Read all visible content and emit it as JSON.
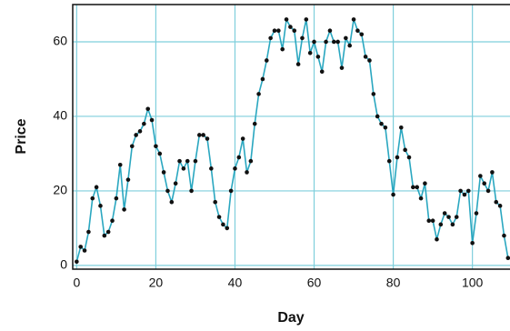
{
  "chart_data": {
    "type": "line",
    "xlabel": "Day",
    "ylabel": "Price",
    "x": [
      0,
      1,
      2,
      3,
      4,
      5,
      6,
      7,
      8,
      9,
      10,
      11,
      12,
      13,
      14,
      15,
      16,
      17,
      18,
      19,
      20,
      21,
      22,
      23,
      24,
      25,
      26,
      27,
      28,
      29,
      30,
      31,
      32,
      33,
      34,
      35,
      36,
      37,
      38,
      39,
      40,
      41,
      42,
      43,
      44,
      45,
      46,
      47,
      48,
      49,
      50,
      51,
      52,
      53,
      54,
      55,
      56,
      57,
      58,
      59,
      60,
      61,
      62,
      63,
      64,
      65,
      66,
      67,
      68,
      69,
      70,
      71,
      72,
      73,
      74,
      75,
      76,
      77,
      78,
      79,
      80,
      81,
      82,
      83,
      84,
      85,
      86,
      87,
      88,
      89,
      90,
      91,
      92,
      93,
      94,
      95,
      96,
      97,
      98,
      99,
      100,
      101,
      102,
      103,
      104,
      105,
      106,
      107,
      108,
      109
    ],
    "series": [
      {
        "name": "Price",
        "color": "#2aa7c0",
        "marker_color": "#111111",
        "values": [
          1,
          5,
          4,
          9,
          18,
          21,
          16,
          8,
          9,
          12,
          18,
          27,
          15,
          23,
          32,
          35,
          36,
          38,
          42,
          39,
          32,
          30,
          25,
          20,
          17,
          22,
          28,
          26,
          28,
          20,
          28,
          35,
          35,
          34,
          26,
          17,
          13,
          11,
          10,
          20,
          26,
          29,
          34,
          25,
          28,
          38,
          46,
          50,
          55,
          61,
          63,
          63,
          58,
          66,
          64,
          63,
          54,
          61,
          66,
          57,
          60,
          56,
          52,
          60,
          63,
          60,
          60,
          53,
          61,
          59,
          66,
          63,
          62,
          56,
          55,
          46,
          40,
          38,
          37,
          28,
          19,
          29,
          37,
          31,
          29,
          21,
          21,
          18,
          22,
          12,
          12,
          7,
          11,
          14,
          13,
          11,
          13,
          20,
          19,
          20,
          6,
          14,
          24,
          22,
          20,
          25,
          17,
          16,
          8,
          2
        ]
      }
    ],
    "xlim": [
      -1,
      109.5
    ],
    "ylim": [
      -1,
      70
    ],
    "xticks": [
      0,
      20,
      40,
      60,
      80,
      100
    ],
    "yticks": [
      0,
      20,
      40,
      60
    ],
    "grid": true,
    "grid_color": "#7fcfdc"
  }
}
